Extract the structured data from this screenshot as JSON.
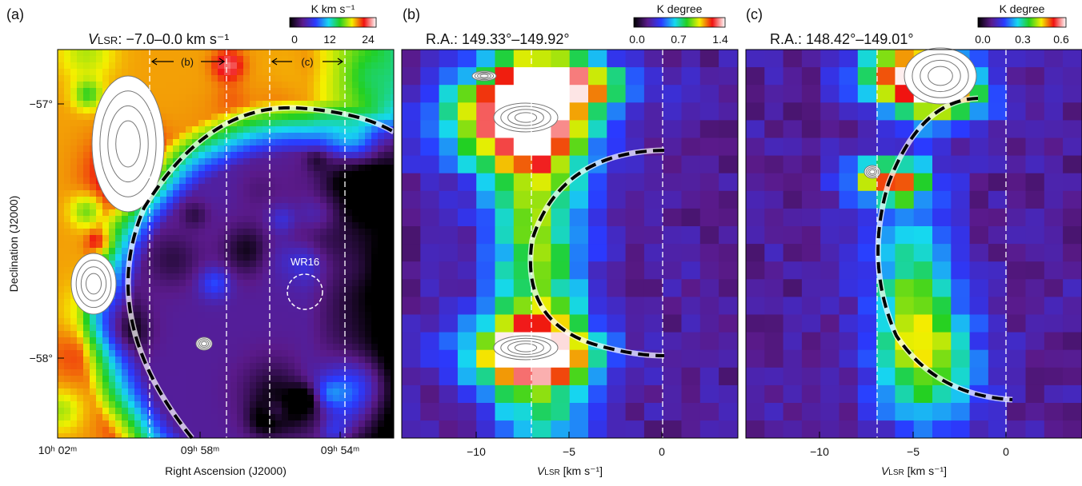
{
  "panels": [
    {
      "label": "(a)",
      "title_main": "V",
      "title_sub": "LSR",
      "title_rest": ": −7.0–0.0 km s⁻¹",
      "colorbar_label": "K km s⁻¹",
      "colorbar_ticks": [
        "0",
        "12",
        "24"
      ],
      "x_ticks": [
        "10ʰ 02ᵐ",
        "09ʰ 58ᵐ",
        "09ʰ 54ᵐ"
      ],
      "y_ticks": [
        "−57°",
        "−58°"
      ],
      "x_label": "Right Ascension (J2000)",
      "y_label": "Declination (J2000)",
      "annotations": [
        "(b)",
        "(c)",
        "WR16"
      ]
    },
    {
      "label": "(b)",
      "title": "R.A.: 149.33°–149.92°",
      "colorbar_label": "K degree",
      "colorbar_ticks": [
        "0.0",
        "0.7",
        "1.4"
      ],
      "x_ticks": [
        "−10",
        "−5",
        "0"
      ],
      "x_label_main": "V",
      "x_label_sub": "LSR",
      "x_label_rest": " [km s⁻¹]"
    },
    {
      "label": "(c)",
      "title": "R.A.: 148.42°–149.01°",
      "colorbar_label": "K degree",
      "colorbar_ticks": [
        "0.0",
        "0.3",
        "0.6"
      ],
      "x_ticks": [
        "−10",
        "−5",
        "0"
      ],
      "x_label_main": "V",
      "x_label_sub": "LSR",
      "x_label_rest": " [km s⁻¹]"
    }
  ]
}
